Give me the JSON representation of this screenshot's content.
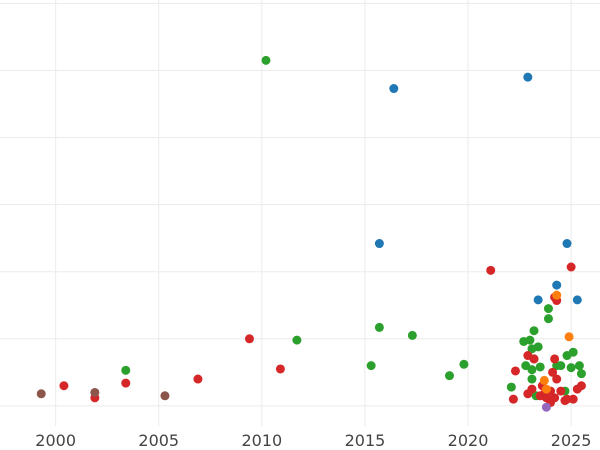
{
  "chart_data": {
    "type": "scatter",
    "title": "",
    "xlabel": "",
    "ylabel": "",
    "xlim": [
      1997.3,
      2026.4
    ],
    "ylim": [
      -0.3,
      6.05
    ],
    "x_ticks": [
      2000,
      2005,
      2010,
      2015,
      2020,
      2025
    ],
    "x_tick_labels": [
      "2000",
      "2005",
      "2010",
      "2015",
      "2020",
      "2025"
    ],
    "y_gridlines": [
      0,
      1,
      2,
      3,
      4,
      5,
      6
    ],
    "grid": true,
    "legend": "none",
    "palette": {
      "blue": "#1f77b4",
      "green": "#2ca02c",
      "red": "#d62728",
      "brown": "#8c564b",
      "orange": "#ff7f0e",
      "purple": "#9467bd"
    },
    "series": [
      {
        "color": "#1f77b4",
        "points": [
          [
            2016.4,
            4.73
          ],
          [
            2022.9,
            4.9
          ],
          [
            2015.7,
            2.42
          ],
          [
            2024.8,
            2.42
          ],
          [
            2024.3,
            1.8
          ],
          [
            2023.4,
            1.58
          ],
          [
            2025.3,
            1.58
          ]
        ]
      },
      {
        "color": "#2ca02c",
        "points": [
          [
            2010.2,
            5.15
          ],
          [
            2015.7,
            1.17
          ],
          [
            2011.7,
            0.98
          ],
          [
            2017.3,
            1.05
          ],
          [
            2015.3,
            0.6
          ],
          [
            2019.8,
            0.62
          ],
          [
            2019.1,
            0.45
          ],
          [
            2003.4,
            0.53
          ],
          [
            2023.0,
            0.98
          ],
          [
            2023.2,
            1.12
          ],
          [
            2023.9,
            1.3
          ],
          [
            2023.9,
            1.45
          ],
          [
            2022.7,
            0.96
          ],
          [
            2023.4,
            0.88
          ],
          [
            2023.1,
            0.85
          ],
          [
            2023.2,
            0.7
          ],
          [
            2023.5,
            0.58
          ],
          [
            2024.5,
            0.6
          ],
          [
            2024.8,
            0.75
          ],
          [
            2025.1,
            0.8
          ],
          [
            2025.4,
            0.6
          ],
          [
            2025.5,
            0.48
          ],
          [
            2025.0,
            0.57
          ],
          [
            2023.1,
            0.4
          ],
          [
            2023.1,
            0.54
          ],
          [
            2022.1,
            0.28
          ],
          [
            2024.3,
            0.6
          ],
          [
            2022.8,
            0.6
          ],
          [
            2024.7,
            0.22
          ],
          [
            2023.3,
            0.15
          ]
        ]
      },
      {
        "color": "#d62728",
        "points": [
          [
            2000.4,
            0.3
          ],
          [
            2001.9,
            0.12
          ],
          [
            2003.4,
            0.34
          ],
          [
            2006.9,
            0.4
          ],
          [
            2009.4,
            1.0
          ],
          [
            2010.9,
            0.55
          ],
          [
            2021.1,
            2.02
          ],
          [
            2025.0,
            2.07
          ],
          [
            2024.3,
            1.57
          ],
          [
            2024.2,
            1.62
          ],
          [
            2022.3,
            0.52
          ],
          [
            2022.2,
            0.1
          ],
          [
            2022.9,
            0.75
          ],
          [
            2023.1,
            0.25
          ],
          [
            2023.2,
            0.7
          ],
          [
            2023.6,
            0.3
          ],
          [
            2023.7,
            0.18
          ],
          [
            2023.8,
            0.12
          ],
          [
            2024.0,
            0.22
          ],
          [
            2024.1,
            0.5
          ],
          [
            2024.2,
            0.7
          ],
          [
            2024.3,
            0.4
          ],
          [
            2024.5,
            0.22
          ],
          [
            2024.7,
            0.08
          ],
          [
            2024.8,
            0.1
          ],
          [
            2025.1,
            0.1
          ],
          [
            2025.3,
            0.25
          ],
          [
            2025.5,
            0.3
          ],
          [
            2024.0,
            0.05
          ],
          [
            2023.5,
            0.15
          ],
          [
            2022.9,
            0.18
          ],
          [
            2024.2,
            0.12
          ]
        ]
      },
      {
        "color": "#8c564b",
        "points": [
          [
            1999.3,
            0.18
          ],
          [
            2001.9,
            0.2
          ],
          [
            2005.3,
            0.15
          ]
        ]
      },
      {
        "color": "#ff7f0e",
        "points": [
          [
            2024.3,
            1.65
          ],
          [
            2024.9,
            1.03
          ],
          [
            2023.7,
            0.38
          ],
          [
            2023.8,
            0.25
          ]
        ]
      },
      {
        "color": "#9467bd",
        "points": [
          [
            2023.8,
            -0.02
          ]
        ]
      }
    ]
  }
}
